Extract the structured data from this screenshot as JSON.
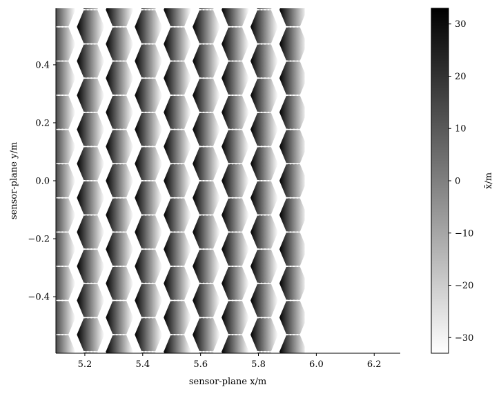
{
  "chart_data": {
    "type": "heatmap",
    "title": "",
    "xlabel": "sensor-plane x/m",
    "ylabel": "sensor-plane y/m",
    "xlim": [
      5.1,
      6.29
    ],
    "ylim": [
      -0.595,
      0.595
    ],
    "x_ticks": [
      5.2,
      5.4,
      5.6,
      5.8,
      6.0,
      6.2
    ],
    "x_tick_labels": [
      "5.2",
      "5.4",
      "5.6",
      "5.8",
      "6.0",
      "6.2"
    ],
    "y_ticks": [
      -0.4,
      -0.2,
      0.0,
      0.2,
      0.4
    ],
    "y_tick_labels": [
      "−0.4",
      "−0.2",
      "0.0",
      "0.2",
      "0.4"
    ],
    "colorbar": {
      "label": "x̄/m",
      "colormap": "gray_r",
      "range": [
        -33,
        33
      ],
      "ticks": [
        -30,
        -20,
        -10,
        0,
        10,
        20,
        30
      ],
      "tick_labels": [
        "−30",
        "−20",
        "−10",
        "0",
        "10",
        "20",
        "30"
      ]
    },
    "pattern": {
      "description_values": "hexagonal lenslet cells; within each cell x̄ ramps from about +33 (black) on the left edge to about −33 (white) on the right edge",
      "cell_columns_x_centers": [
        5.12,
        5.22,
        5.32,
        5.42,
        5.52,
        5.62,
        5.72,
        5.82,
        5.92
      ],
      "x_extent_of_data": [
        5.1,
        5.96
      ],
      "column_pitch_y": 0.118,
      "rows_in_column": 11,
      "cell_value_left": 33,
      "cell_value_right": -33
    }
  },
  "colors": {
    "min_color": "#ffffff",
    "max_color": "#000000",
    "gap_color": "#ffffff"
  }
}
